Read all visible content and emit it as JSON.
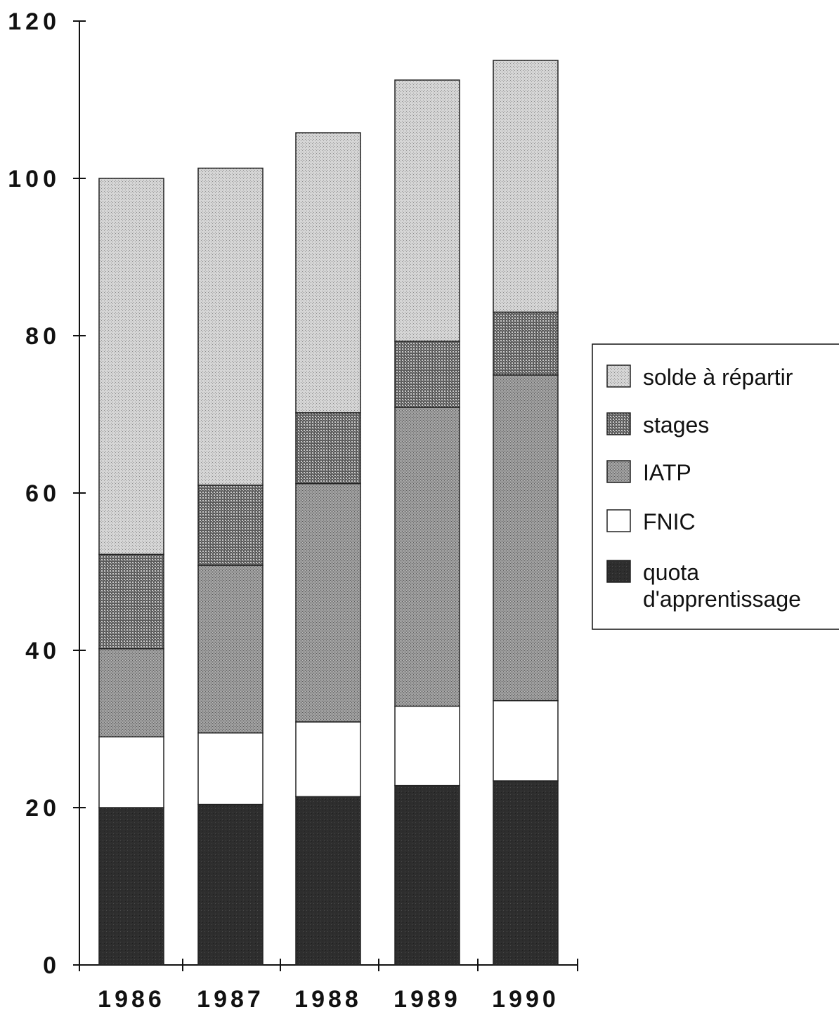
{
  "chart_data": {
    "type": "bar",
    "stacked": true,
    "categories": [
      "1986",
      "1987",
      "1988",
      "1989",
      "1990"
    ],
    "series": [
      {
        "name": "quota d'apprentissage",
        "values": [
          20,
          20.4,
          21.4,
          22.8,
          23.4
        ],
        "pattern": "dark"
      },
      {
        "name": "FNIC",
        "values": [
          9,
          9.1,
          9.5,
          10.1,
          10.2
        ],
        "pattern": "white"
      },
      {
        "name": "IATP",
        "values": [
          11.2,
          21.3,
          30.3,
          38,
          41.4
        ],
        "pattern": "medium-dots"
      },
      {
        "name": "stages",
        "values": [
          12,
          10.2,
          9,
          8.4,
          8
        ],
        "pattern": "heavy-dots"
      },
      {
        "name": "solde à répartir",
        "values": [
          47.8,
          40.3,
          35.6,
          33.2,
          32
        ],
        "pattern": "light-dots"
      }
    ],
    "yticks": [
      "0",
      "20",
      "40",
      "60",
      "80",
      "100",
      "120"
    ],
    "ylim": [
      0,
      120
    ],
    "title": "",
    "xlabel": "",
    "ylabel": "",
    "grid": false,
    "legend_position": "right",
    "legend": {
      "entries": [
        "solde à répartir",
        "stages",
        "IATP",
        "FNIC",
        "quota d'apprentissage"
      ],
      "last_entry_lines": [
        "quota",
        "d'apprentissage"
      ]
    }
  }
}
